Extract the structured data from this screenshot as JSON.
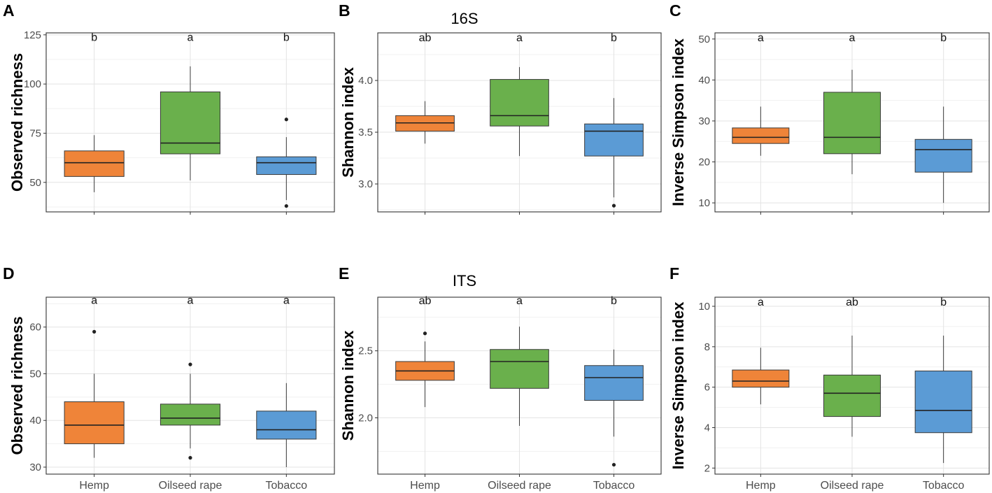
{
  "row_titles": {
    "top": "16S",
    "bottom": "ITS"
  },
  "colors": {
    "Hemp": "#ef8439",
    "Oilseed rape": "#6ab04c",
    "Tobacco": "#5b9bd5"
  },
  "chart_data": [
    {
      "type": "box",
      "panel": "A",
      "ylabel": "Observed richness",
      "ylim": [
        35,
        126
      ],
      "yticks": [
        50,
        75,
        100,
        125
      ],
      "yminor": [
        37.5,
        62.5,
        87.5,
        112.5
      ],
      "categories": [
        "Hemp",
        "Oilseed rape",
        "Tobacco"
      ],
      "show_xlabels": false,
      "boxes": [
        {
          "q1": 53,
          "median": 60,
          "q3": 66,
          "lower": 45,
          "upper": 74,
          "outliers": []
        },
        {
          "q1": 64.5,
          "median": 70,
          "q3": 96,
          "lower": 51,
          "upper": 109,
          "outliers": []
        },
        {
          "q1": 54,
          "median": 60,
          "q3": 63,
          "lower": 41,
          "upper": 73,
          "outliers": [
            82,
            38
          ]
        }
      ],
      "letters": [
        "b",
        "a",
        "b"
      ],
      "letter_y": 124
    },
    {
      "type": "box",
      "panel": "B",
      "title_ref": "top",
      "ylabel": "Shannon index",
      "ylim": [
        2.73,
        4.46
      ],
      "yticks": [
        3.0,
        3.5,
        4.0
      ],
      "yminor": [
        2.75,
        3.25,
        3.75,
        4.25
      ],
      "categories": [
        "Hemp",
        "Oilseed rape",
        "Tobacco"
      ],
      "show_xlabels": false,
      "boxes": [
        {
          "q1": 3.51,
          "median": 3.59,
          "q3": 3.66,
          "lower": 3.39,
          "upper": 3.8,
          "outliers": []
        },
        {
          "q1": 3.56,
          "median": 3.66,
          "q3": 4.01,
          "lower": 3.27,
          "upper": 4.13,
          "outliers": []
        },
        {
          "q1": 3.27,
          "median": 3.51,
          "q3": 3.58,
          "lower": 2.87,
          "upper": 3.83,
          "outliers": [
            2.79
          ]
        }
      ],
      "letters": [
        "ab",
        "a",
        "b"
      ],
      "letter_y": 4.42
    },
    {
      "type": "box",
      "panel": "C",
      "ylabel": "Inverse Simpson index",
      "ylim": [
        7.8,
        51.5
      ],
      "yticks": [
        10,
        20,
        30,
        40,
        50
      ],
      "yminor": [
        15,
        25,
        35,
        45
      ],
      "categories": [
        "Hemp",
        "Oilseed rape",
        "Tobacco"
      ],
      "show_xlabels": false,
      "boxes": [
        {
          "q1": 24.5,
          "median": 26,
          "q3": 28.3,
          "lower": 21.5,
          "upper": 33.5,
          "outliers": []
        },
        {
          "q1": 22,
          "median": 26,
          "q3": 37,
          "lower": 17,
          "upper": 42.5,
          "outliers": []
        },
        {
          "q1": 17.5,
          "median": 23,
          "q3": 25.5,
          "lower": 10,
          "upper": 33.5,
          "outliers": []
        }
      ],
      "letters": [
        "a",
        "a",
        "b"
      ],
      "letter_y": 50.5
    },
    {
      "type": "box",
      "panel": "D",
      "ylabel": "Observed richness",
      "ylim": [
        28.5,
        66.4
      ],
      "yticks": [
        30,
        40,
        50,
        60
      ],
      "yminor": [
        35,
        45,
        55,
        65
      ],
      "categories": [
        "Hemp",
        "Oilseed rape",
        "Tobacco"
      ],
      "show_xlabels": true,
      "boxes": [
        {
          "q1": 35,
          "median": 39,
          "q3": 44,
          "lower": 32,
          "upper": 50,
          "outliers": [
            59
          ]
        },
        {
          "q1": 39,
          "median": 40.5,
          "q3": 43.5,
          "lower": 34,
          "upper": 50,
          "outliers": [
            52,
            32
          ]
        },
        {
          "q1": 36,
          "median": 38,
          "q3": 42,
          "lower": 30,
          "upper": 48,
          "outliers": []
        }
      ],
      "letters": [
        "a",
        "a",
        "a"
      ],
      "letter_y": 65.9
    },
    {
      "type": "box",
      "panel": "E",
      "title_ref": "bottom",
      "ylabel": "Shannon index",
      "ylim": [
        1.58,
        2.9
      ],
      "yticks": [
        2.0,
        2.5
      ],
      "yminor": [
        1.75,
        2.25,
        2.75
      ],
      "categories": [
        "Hemp",
        "Oilseed rape",
        "Tobacco"
      ],
      "show_xlabels": true,
      "boxes": [
        {
          "q1": 2.28,
          "median": 2.35,
          "q3": 2.42,
          "lower": 2.08,
          "upper": 2.57,
          "outliers": [
            2.63
          ]
        },
        {
          "q1": 2.22,
          "median": 2.42,
          "q3": 2.51,
          "lower": 1.94,
          "upper": 2.68,
          "outliers": []
        },
        {
          "q1": 2.13,
          "median": 2.3,
          "q3": 2.39,
          "lower": 1.86,
          "upper": 2.51,
          "outliers": [
            1.65
          ]
        }
      ],
      "letters": [
        "ab",
        "a",
        "b"
      ],
      "letter_y": 2.88
    },
    {
      "type": "box",
      "panel": "F",
      "ylabel": "Inverse Simpson index",
      "ylim": [
        1.7,
        10.45
      ],
      "yticks": [
        2,
        4,
        6,
        8,
        10
      ],
      "yminor": [
        3,
        5,
        7,
        9
      ],
      "categories": [
        "Hemp",
        "Oilseed rape",
        "Tobacco"
      ],
      "show_xlabels": true,
      "boxes": [
        {
          "q1": 6,
          "median": 6.3,
          "q3": 6.85,
          "lower": 5.15,
          "upper": 7.95,
          "outliers": []
        },
        {
          "q1": 4.55,
          "median": 5.7,
          "q3": 6.6,
          "lower": 3.55,
          "upper": 8.55,
          "outliers": []
        },
        {
          "q1": 3.75,
          "median": 4.85,
          "q3": 6.8,
          "lower": 2.25,
          "upper": 8.55,
          "outliers": []
        }
      ],
      "letters": [
        "a",
        "ab",
        "b"
      ],
      "letter_y": 10.25
    }
  ]
}
